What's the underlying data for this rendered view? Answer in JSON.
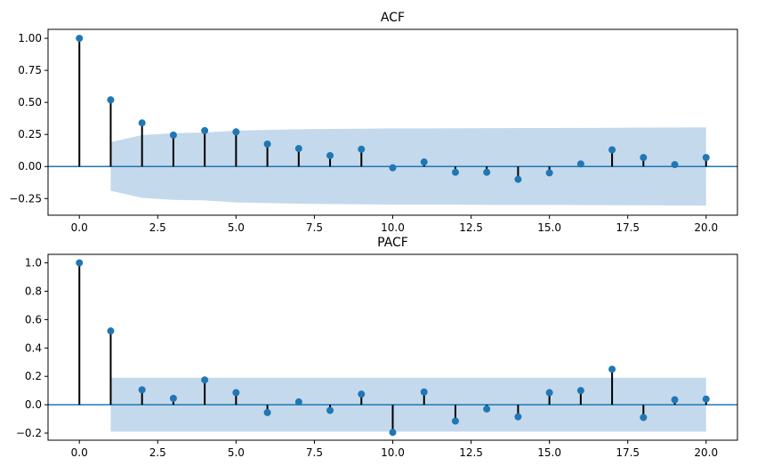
{
  "chart_data": [
    {
      "type": "stem",
      "title": "ACF",
      "xlabel": "",
      "ylabel": "",
      "xlim": [
        -1,
        21
      ],
      "ylim": [
        -0.38,
        1.07
      ],
      "xticks": [
        0.0,
        2.5,
        5.0,
        7.5,
        10.0,
        12.5,
        15.0,
        17.5,
        20.0
      ],
      "xtick_labels": [
        "0.0",
        "2.5",
        "5.0",
        "7.5",
        "10.0",
        "12.5",
        "15.0",
        "17.5",
        "20.0"
      ],
      "yticks": [
        1.0,
        0.75,
        0.5,
        0.25,
        0.0,
        -0.25
      ],
      "ytick_labels": [
        "1.00",
        "0.75",
        "0.50",
        "0.25",
        "0.00",
        "−0.25"
      ],
      "lags": [
        0,
        1,
        2,
        3,
        4,
        5,
        6,
        7,
        8,
        9,
        10,
        11,
        12,
        13,
        14,
        15,
        16,
        17,
        18,
        19,
        20
      ],
      "values": [
        1.0,
        0.52,
        0.34,
        0.245,
        0.28,
        0.27,
        0.175,
        0.14,
        0.085,
        0.135,
        -0.01,
        0.035,
        -0.045,
        -0.045,
        -0.1,
        -0.05,
        0.02,
        0.13,
        0.07,
        0.015,
        0.07
      ],
      "confidence_band": {
        "lags": [
          1,
          2,
          3,
          4,
          5,
          6,
          7,
          8,
          9,
          10,
          11,
          12,
          13,
          14,
          15,
          16,
          17,
          18,
          19,
          20
        ],
        "upper": [
          0.19,
          0.245,
          0.26,
          0.265,
          0.28,
          0.285,
          0.29,
          0.293,
          0.295,
          0.297,
          0.297,
          0.298,
          0.299,
          0.3,
          0.3,
          0.301,
          0.302,
          0.303,
          0.304,
          0.305
        ]
      },
      "colors": {
        "marker": "#1f77b4",
        "stem": "#000000",
        "band": "#c4d9ec",
        "zero_line": "#1f77b4"
      }
    },
    {
      "type": "stem",
      "title": "PACF",
      "xlabel": "",
      "ylabel": "",
      "xlim": [
        -1,
        21
      ],
      "ylim": [
        -0.25,
        1.06
      ],
      "xticks": [
        0.0,
        2.5,
        5.0,
        7.5,
        10.0,
        12.5,
        15.0,
        17.5,
        20.0
      ],
      "xtick_labels": [
        "0.0",
        "2.5",
        "5.0",
        "7.5",
        "10.0",
        "12.5",
        "15.0",
        "17.5",
        "20.0"
      ],
      "yticks": [
        1.0,
        0.8,
        0.6,
        0.4,
        0.2,
        0.0,
        -0.2
      ],
      "ytick_labels": [
        "1.0",
        "0.8",
        "0.6",
        "0.4",
        "0.2",
        "0.0",
        "−0.2"
      ],
      "lags": [
        0,
        1,
        2,
        3,
        4,
        5,
        6,
        7,
        8,
        9,
        10,
        11,
        12,
        13,
        14,
        15,
        16,
        17,
        18,
        19,
        20
      ],
      "values": [
        1.0,
        0.52,
        0.105,
        0.045,
        0.175,
        0.085,
        -0.055,
        0.02,
        -0.04,
        0.075,
        -0.195,
        0.09,
        -0.115,
        -0.03,
        -0.085,
        0.085,
        0.1,
        0.25,
        -0.09,
        0.035,
        0.04
      ],
      "confidence_band": {
        "lags": [
          1,
          20
        ],
        "upper": [
          0.19,
          0.19
        ]
      },
      "colors": {
        "marker": "#1f77b4",
        "stem": "#000000",
        "band": "#c4d9ec",
        "zero_line": "#1f77b4"
      }
    }
  ]
}
